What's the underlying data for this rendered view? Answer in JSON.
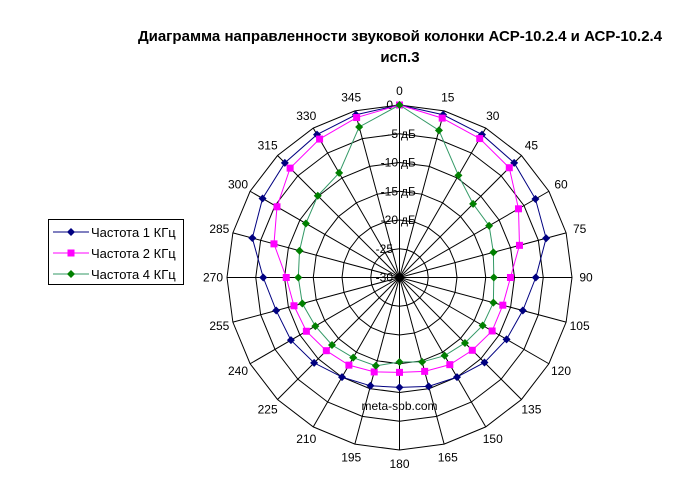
{
  "chart_data": {
    "type": "radar",
    "title": "Диаграмма направленности звуковой колонки АСР-10.2.4 и АСР-10.2.4 исп.3",
    "categories": [
      "0",
      "15",
      "30",
      "45",
      "60",
      "75",
      "90",
      "105",
      "120",
      "135",
      "150",
      "165",
      "180",
      "195",
      "210",
      "225",
      "240",
      "255",
      "270",
      "285",
      "300",
      "315",
      "330",
      "345"
    ],
    "rlim": [
      -30,
      0
    ],
    "ticks": [
      {
        "value": 0,
        "label": "0",
        "unit": ""
      },
      {
        "value": -5,
        "label": "-5",
        "unit": "дБ"
      },
      {
        "value": -10,
        "label": "-10",
        "unit": "дБ"
      },
      {
        "value": -15,
        "label": "-15",
        "unit": "дБ"
      },
      {
        "value": -20,
        "label": "-20",
        "unit": "дБ"
      },
      {
        "value": -25,
        "label": "-25",
        "unit": ""
      },
      {
        "value": -30,
        "label": "-30",
        "unit": ""
      }
    ],
    "grid": true,
    "legend_position": "left",
    "series": [
      {
        "name": "Частота 1 КГц",
        "color": "#000080",
        "marker": "diamond",
        "values": [
          0,
          -0.7,
          -1.3,
          -1.8,
          -2.7,
          -3.6,
          -6.3,
          -7.8,
          -8.5,
          -9.1,
          -10,
          -10.4,
          -10.9,
          -10.5,
          -10,
          -9,
          -8.2,
          -7.8,
          -6.3,
          -3.5,
          -2.5,
          -1.8,
          -1.3,
          -0.7
        ]
      },
      {
        "name": "Частота 2 КГц",
        "color": "#FF00FF",
        "marker": "square",
        "values": [
          0,
          -1.3,
          -2.1,
          -3,
          -6.1,
          -8.4,
          -10.7,
          -11.4,
          -11.4,
          -12.1,
          -12.5,
          -13.1,
          -13.5,
          -13,
          -12.4,
          -12,
          -11.3,
          -11,
          -10.3,
          -7.4,
          -5.4,
          -3.1,
          -2.2,
          -1.2
        ]
      },
      {
        "name": "Частота 4 КГц",
        "color": "#339966",
        "marker_color": "#008000",
        "marker": "diamond",
        "values": [
          0,
          -3.5,
          -9.5,
          -11.9,
          -12,
          -13.1,
          -13.6,
          -13.1,
          -13.3,
          -13.9,
          -14.3,
          -14.8,
          -15.3,
          -14.1,
          -13.9,
          -13.4,
          -13.1,
          -12.5,
          -12.4,
          -12,
          -11.2,
          -9.9,
          -9,
          -2.9
        ]
      }
    ],
    "annotation": "meta-spb.com"
  }
}
